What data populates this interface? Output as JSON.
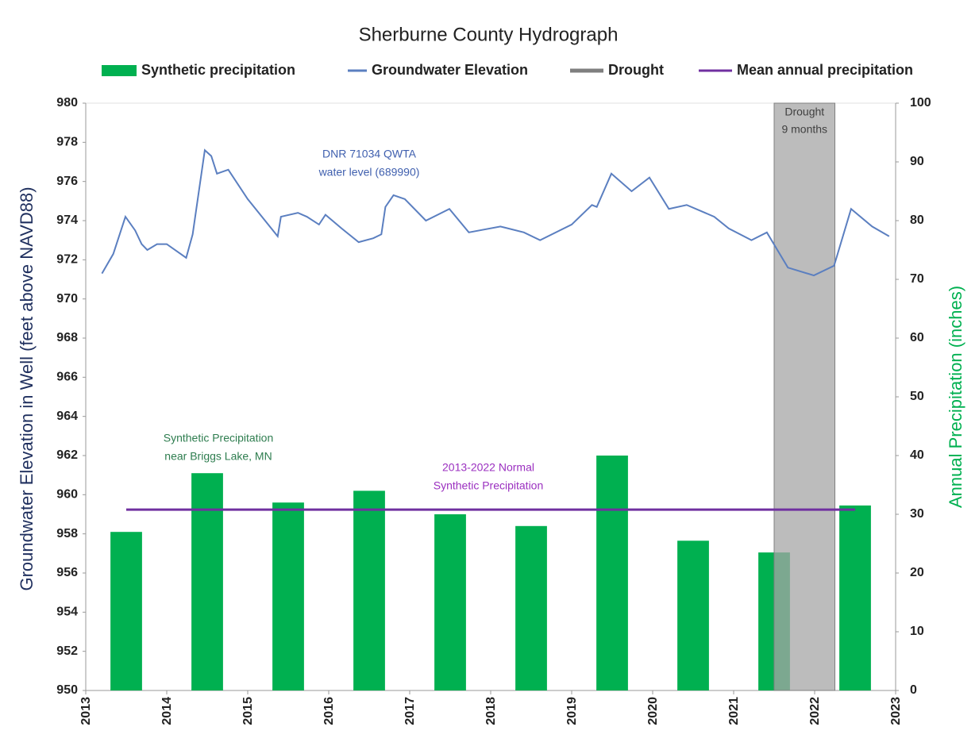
{
  "chart_data": {
    "type": "combo",
    "title": "Sherburne County Hydrograph",
    "y_label": "Groundwater Elevation in Well (feet above NAVD88)",
    "y2_label": "Annual Precipitation (inches)",
    "xlim": [
      2013,
      2023
    ],
    "xticks": [
      2013,
      2014,
      2015,
      2016,
      2017,
      2018,
      2019,
      2020,
      2021,
      2022,
      2023
    ],
    "ylim": [
      950,
      980
    ],
    "yticks": [
      950,
      952,
      954,
      956,
      958,
      960,
      962,
      964,
      966,
      968,
      970,
      972,
      974,
      976,
      978,
      980
    ],
    "y2lim": [
      0,
      100
    ],
    "y2ticks": [
      0,
      10,
      20,
      30,
      40,
      50,
      60,
      70,
      80,
      90,
      100
    ],
    "legend": "top",
    "series": [
      {
        "name": "Synthetic precipitation",
        "type": "bar",
        "axis": "y2",
        "color": "#00b050",
        "x": [
          2013.5,
          2014.5,
          2015.5,
          2016.5,
          2017.5,
          2018.5,
          2019.5,
          2020.5,
          2021.5,
          2022.5
        ],
        "values": [
          27,
          37,
          32,
          34,
          30,
          28,
          40,
          25.5,
          23.5,
          31.5
        ]
      },
      {
        "name": "Groundwater Elevation",
        "type": "line",
        "color": "#5b7fc0",
        "x": [
          2013.2,
          2013.34,
          2013.49,
          2013.61,
          2013.69,
          2013.76,
          2013.88,
          2014.0,
          2014.24,
          2014.32,
          2014.47,
          2014.55,
          2014.62,
          2014.69,
          2014.76,
          2015.0,
          2015.37,
          2015.41,
          2015.62,
          2015.73,
          2015.88,
          2015.96,
          2016.16,
          2016.37,
          2016.55,
          2016.65,
          2016.7,
          2016.8,
          2016.94,
          2017.2,
          2017.49,
          2017.73,
          2018.12,
          2018.41,
          2018.61,
          2019.0,
          2019.25,
          2019.31,
          2019.49,
          2019.74,
          2019.96,
          2020.2,
          2020.42,
          2020.76,
          2020.94,
          2021.22,
          2021.41,
          2021.67,
          2021.99,
          2022.24,
          2022.45,
          2022.71,
          2022.92
        ],
        "values": [
          971.3,
          972.3,
          974.2,
          973.5,
          972.8,
          972.5,
          972.8,
          972.8,
          972.1,
          973.3,
          977.6,
          977.3,
          976.4,
          976.5,
          976.6,
          975.1,
          973.2,
          974.2,
          974.4,
          974.2,
          973.8,
          974.3,
          973.6,
          972.9,
          973.1,
          973.3,
          974.7,
          975.3,
          975.1,
          974.0,
          974.6,
          973.4,
          973.7,
          973.4,
          973.0,
          973.8,
          974.8,
          974.7,
          976.4,
          975.5,
          976.2,
          974.6,
          974.8,
          974.2,
          973.6,
          973.0,
          973.4,
          971.6,
          971.2,
          971.7,
          974.6,
          973.7,
          973.2
        ]
      },
      {
        "name": "Drought",
        "type": "span",
        "color": "#a6a6a6",
        "x": [
          2021.5,
          2022.25
        ],
        "label": [
          "Drought",
          "9 months"
        ]
      },
      {
        "name": "Mean annual precipitation",
        "type": "line",
        "axis": "y2",
        "color": "#7030a0",
        "x": [
          2013.5,
          2022.5
        ],
        "values": [
          30.8,
          30.8
        ]
      }
    ],
    "annotations": [
      {
        "text": [
          "DNR 71034 QWTA",
          "water level (689990)"
        ],
        "color": "#3f5fae"
      },
      {
        "text": [
          "Synthetic Precipitation",
          "near Briggs Lake, MN"
        ],
        "color": "#2e7d4f"
      },
      {
        "text": [
          "2013-2022 Normal",
          "Synthetic Precipitation"
        ],
        "color": "#9b30c0"
      }
    ]
  }
}
